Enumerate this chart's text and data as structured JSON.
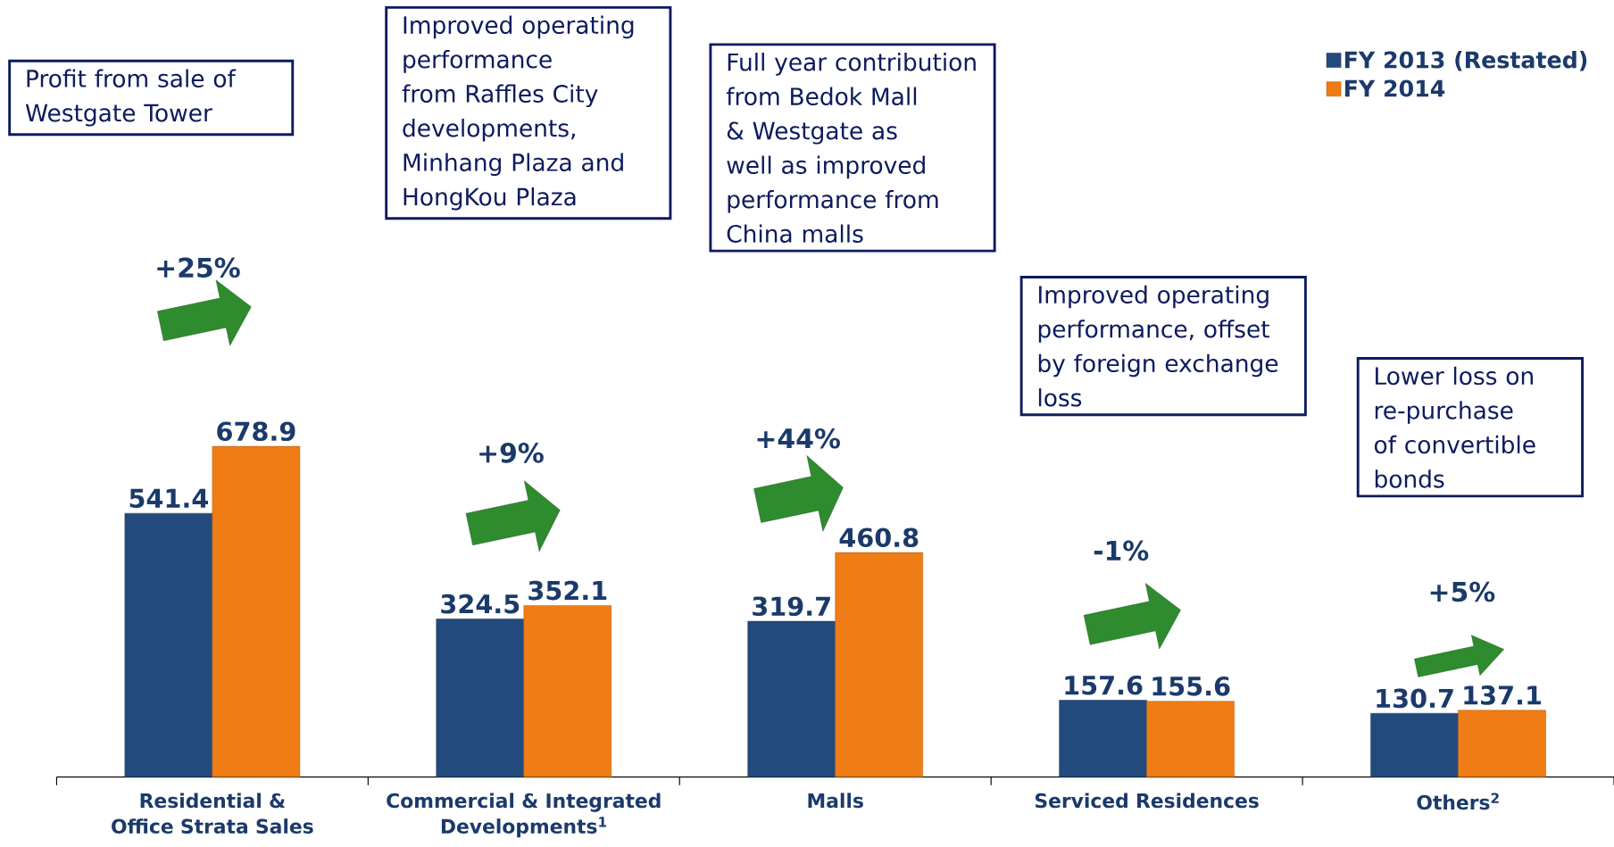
{
  "chart_data": {
    "type": "bar",
    "categories": [
      "Residential & Office Strata Sales",
      "Commercial & Integrated Developments$^{1}$",
      "Malls",
      "Serviced Residences",
      "Others$^{2}$"
    ],
    "series": [
      {
        "name": "FY 2013 (Restated)",
        "color": "#234a7c",
        "values": [
          541.4,
          324.5,
          319.7,
          157.6,
          130.7
        ]
      },
      {
        "name": "FY 2014",
        "color": "#ef7c15",
        "values": [
          678.9,
          352.1,
          460.8,
          155.6,
          137.1
        ]
      }
    ],
    "data_labels": true,
    "legend": "top right",
    "annotations": [
      "Profit from sale of Westgate Tower",
      "Improved operating performance from Raffles City developments, Minhang Plaza and HongKou Plaza",
      "Full year contribution from Bedok Mall & Westgate as well as improved performance from China malls",
      "Improved operating performance, offset by foreign exchange loss",
      "Lower loss on re-purchase of convertible bonds",
      "+25%",
      "+9%",
      "+44%",
      "-1%",
      "+5%"
    ]
  }
}
